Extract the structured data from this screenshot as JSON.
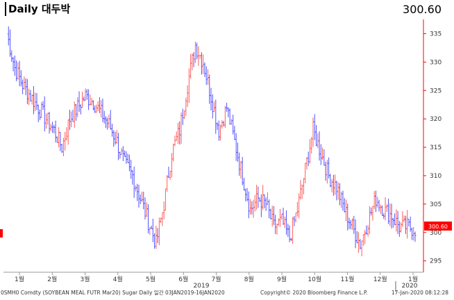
{
  "chart_data": {
    "type": "ohlc",
    "title": "Daily 대두박",
    "last_price_display": "300.60",
    "last_price_tag": "300.60",
    "y_ticks": [
      "295",
      "300",
      "305",
      "310",
      "315",
      "320",
      "325",
      "330",
      "335"
    ],
    "ylim": [
      293,
      338
    ],
    "x_month_labels": [
      "1월",
      "2월",
      "3월",
      "4월",
      "5월",
      "6월",
      "7월",
      "8월",
      "9월",
      "10월",
      "11월",
      "12월",
      "1월"
    ],
    "year_labels": [
      "2019",
      "2020"
    ],
    "footer_left": "0SMH0 Comdty (SOYBEAN MEAL FUTR Mar20) Sugar Daily 일간 03JAN2019-16JAN2020",
    "footer_mid": "Copyright© 2020 Bloomberg Finance L.P.",
    "footer_right": "17-Jan-2020 08:12:28",
    "colors": {
      "up": "#ff5a5a",
      "down": "#4f4fff",
      "axis": "#ff0000",
      "last_tag_bg": "#ff0000",
      "text": "#000000"
    },
    "closes_weekly": [
      335,
      329,
      326,
      324,
      322,
      320,
      318,
      315,
      320,
      322,
      324,
      323,
      321,
      319,
      316,
      312,
      310,
      306,
      302,
      298,
      305,
      314,
      318,
      326,
      333,
      330,
      324,
      318,
      322,
      316,
      310,
      304,
      306,
      305,
      301,
      302,
      299,
      304,
      311,
      318,
      314,
      310,
      308,
      304,
      301,
      298,
      302,
      306,
      304,
      303,
      301,
      301,
      300.6
    ]
  }
}
